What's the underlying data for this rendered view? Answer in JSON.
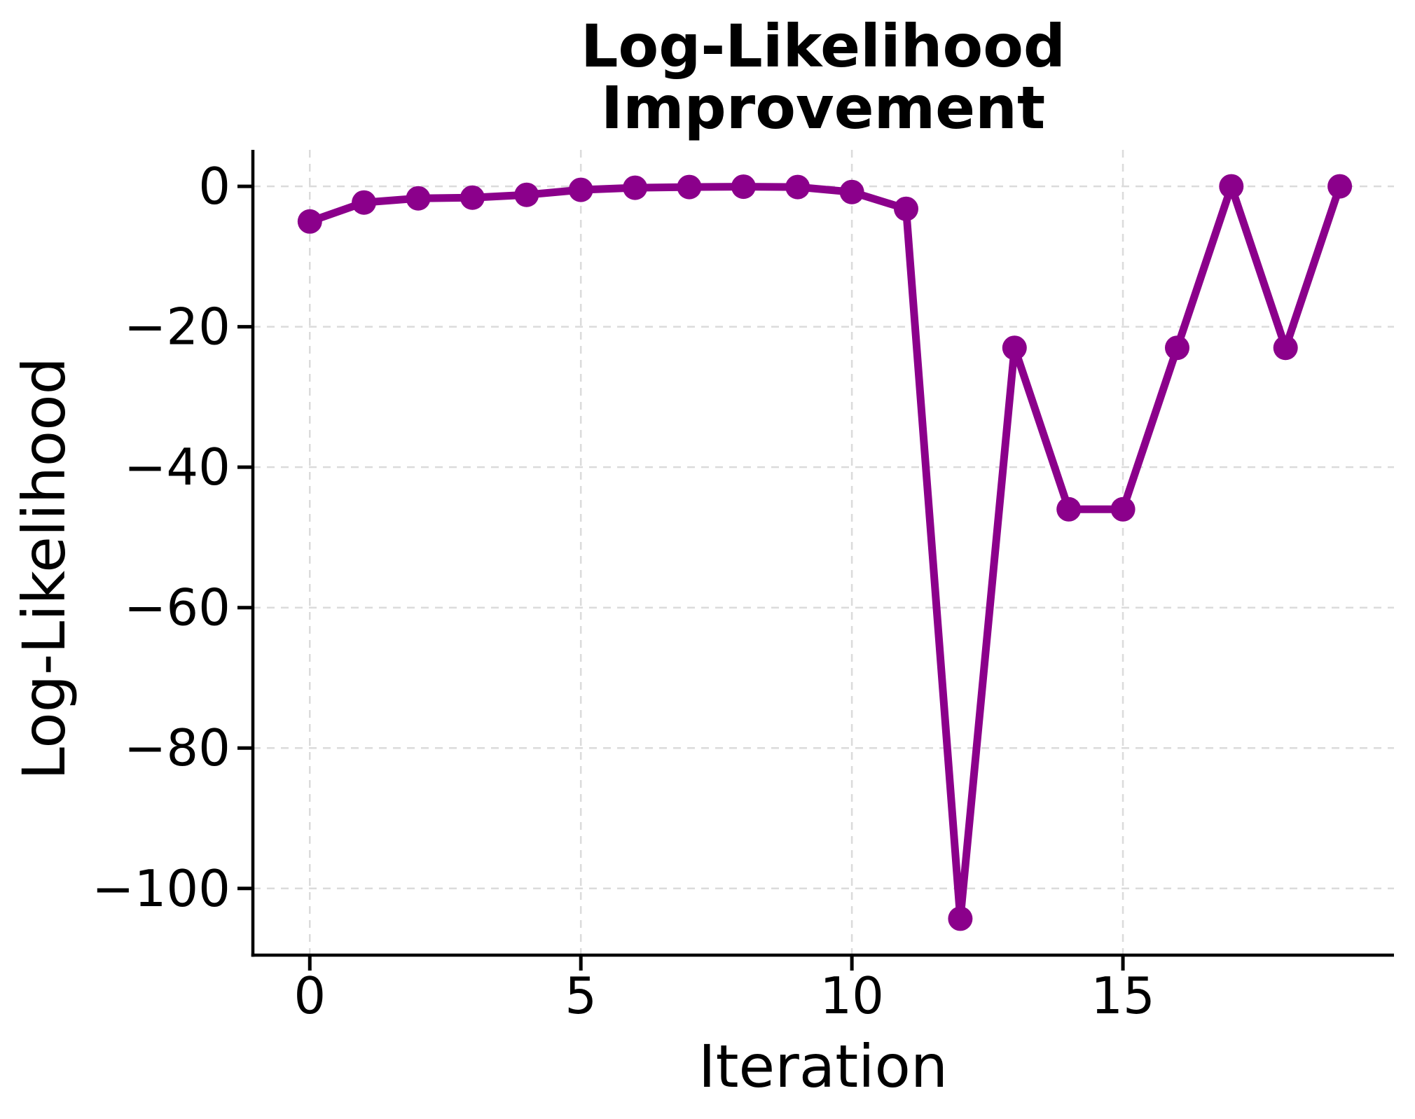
{
  "title": {
    "line1": "Log-Likelihood",
    "line2": "Improvement"
  },
  "chart_data": {
    "type": "line",
    "title": "Log-Likelihood Improvement",
    "xlabel": "Iteration",
    "ylabel": "Log-Likelihood",
    "x": [
      0,
      1,
      2,
      3,
      4,
      5,
      6,
      7,
      8,
      9,
      10,
      11,
      12,
      13,
      14,
      15,
      16,
      17,
      18,
      19
    ],
    "y": [
      -5.0,
      -2.3,
      -1.7,
      -1.6,
      -1.2,
      -0.5,
      -0.2,
      -0.1,
      -0.05,
      -0.1,
      -0.8,
      -3.2,
      -104.3,
      -23,
      -46,
      -46,
      -23,
      0,
      -23,
      0
    ],
    "x_ticks": {
      "values": [
        0,
        5,
        10,
        15
      ],
      "labels": [
        "0",
        "5",
        "10",
        "15"
      ]
    },
    "y_ticks": {
      "values": [
        0,
        -20,
        -40,
        -60,
        -80,
        -100
      ],
      "labels": [
        "0",
        "−20",
        "−40",
        "−60",
        "−80",
        "−100"
      ]
    },
    "xlim": [
      -1.05,
      20.0
    ],
    "ylim": [
      -109.5,
      5.2
    ],
    "grid": true,
    "grid_style": "dashed",
    "legend": false,
    "marker": "o",
    "colors": {
      "line": "#8B008B",
      "marker": "#8B008B",
      "grid": "#DBDBDB",
      "axis": "#000000",
      "text": "#000000",
      "background": "#FFFFFF"
    }
  }
}
